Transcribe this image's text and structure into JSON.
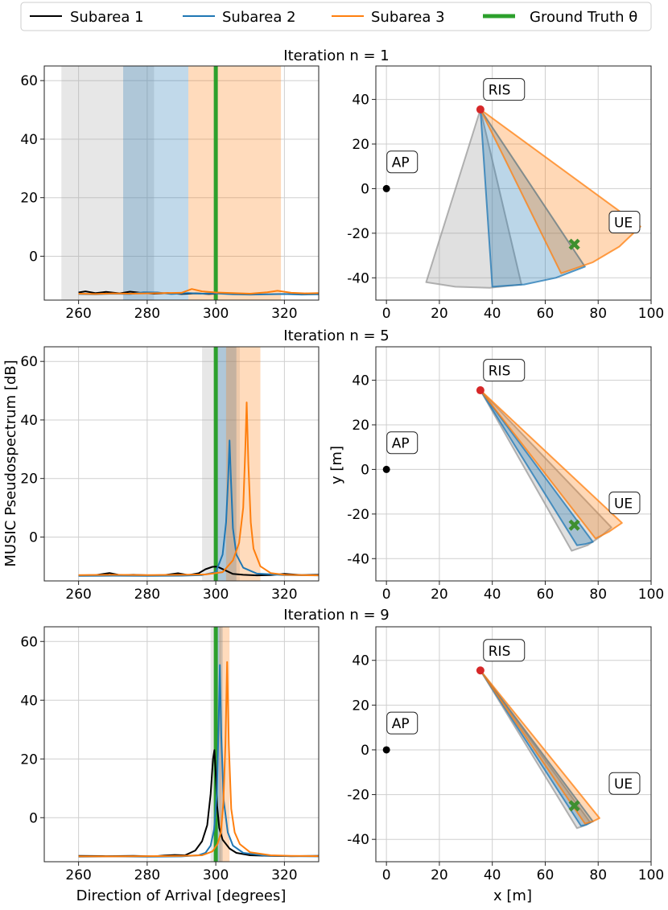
{
  "legend": {
    "entries": [
      {
        "label": "Subarea 1",
        "color": "#000000"
      },
      {
        "label": "Subarea  2",
        "color": "#1f77b4"
      },
      {
        "label": "Subarea  3",
        "color": "#ff7f0e"
      },
      {
        "label": "Ground Truth θ",
        "color": "#2ca02c"
      }
    ]
  },
  "rows": [
    {
      "title": "Iteration n = 1"
    },
    {
      "title": "Iteration n = 5"
    },
    {
      "title": "Iteration n = 9"
    }
  ],
  "labels": {
    "spectrum_ylabel": "MUSIC Pseudospectrum [dB]",
    "spectrum_xlabel": "Direction of Arrival [degrees]",
    "geo_ylabel": "y [m]",
    "geo_xlabel": "x [m]"
  },
  "colors": {
    "subarea1": "#000000",
    "subarea2": "#1f77b4",
    "subarea3": "#ff7f0e",
    "ground_truth": "#2ca02c",
    "ris_marker": "#d62728",
    "ue_marker": "#2ca02c",
    "ap_marker": "#000000"
  },
  "chart_data": [
    {
      "type": "line",
      "title": "Iteration n = 1",
      "xlabel": "",
      "ylabel": "",
      "xlim": [
        250,
        330
      ],
      "ylim": [
        -15,
        65
      ],
      "xticks": [
        260,
        280,
        300,
        320
      ],
      "yticks": [
        0,
        20,
        40,
        60
      ],
      "grid": true,
      "ground_truth": 300,
      "bands": [
        {
          "series": "Subarea 1",
          "range": [
            255,
            282
          ]
        },
        {
          "series": "Subarea 2",
          "range": [
            273,
            292
          ]
        },
        {
          "series": "Subarea 3",
          "range": [
            292,
            319
          ]
        }
      ],
      "series": [
        {
          "name": "Subarea 1",
          "x": [
            260,
            262,
            265,
            268,
            272,
            275,
            278,
            282,
            286,
            290,
            294,
            298,
            300
          ],
          "y": [
            -12.4,
            -12.0,
            -12.6,
            -12.2,
            -12.7,
            -12.1,
            -12.5,
            -12.8,
            -12.6,
            -12.9,
            -12.7,
            -12.9,
            -12.8
          ]
        },
        {
          "name": "Subarea 2",
          "x": [
            260,
            265,
            270,
            275,
            279,
            283,
            287,
            292,
            296,
            300,
            305,
            310,
            315,
            320,
            325,
            330
          ],
          "y": [
            -12.9,
            -13.0,
            -12.8,
            -12.9,
            -12.3,
            -12.4,
            -12.9,
            -12.6,
            -12.8,
            -12.7,
            -13.0,
            -13.1,
            -13.0,
            -12.9,
            -13.1,
            -13.0
          ]
        },
        {
          "name": "Subarea 3",
          "x": [
            260,
            265,
            270,
            275,
            280,
            285,
            290,
            293,
            296,
            300,
            305,
            310,
            315,
            318,
            322,
            326,
            330
          ],
          "y": [
            -12.8,
            -12.9,
            -12.7,
            -12.8,
            -12.7,
            -12.6,
            -12.5,
            -11.2,
            -12.0,
            -12.4,
            -12.6,
            -12.8,
            -12.3,
            -11.8,
            -12.5,
            -12.7,
            -12.6
          ]
        }
      ]
    },
    {
      "type": "scatter",
      "title": "Iteration n = 1",
      "xlim": [
        -4,
        100
      ],
      "ylim": [
        -50,
        55
      ],
      "xticks": [
        0,
        20,
        40,
        60,
        80,
        100
      ],
      "yticks": [
        -40,
        -20,
        0,
        20,
        40
      ],
      "grid": true,
      "points": [
        {
          "label": "AP",
          "x": 0,
          "y": 0
        },
        {
          "label": "RIS",
          "x": 35.5,
          "y": 35.5
        },
        {
          "label": "UE",
          "x": 71,
          "y": -25
        }
      ],
      "label_offsets": {
        "AP": [
          2,
          10
        ],
        "RIS": [
          3,
          7
        ],
        "UE": [
          15,
          8
        ]
      },
      "sectors": [
        {
          "series": "Subarea 1",
          "vertices": [
            [
              35.5,
              35.5
            ],
            [
              15,
              -42
            ],
            [
              26,
              -44
            ],
            [
              39,
              -44.5
            ],
            [
              51,
              -43
            ]
          ]
        },
        {
          "series": "Subarea 2",
          "vertices": [
            [
              35.5,
              35.5
            ],
            [
              40,
              -44
            ],
            [
              52,
              -43
            ],
            [
              64,
              -40
            ],
            [
              75,
              -35
            ]
          ]
        },
        {
          "series": "Subarea 3",
          "vertices": [
            [
              35.5,
              35.5
            ],
            [
              66,
              -38
            ],
            [
              78,
              -33
            ],
            [
              88,
              -26
            ],
            [
              96,
              -17
            ]
          ]
        }
      ]
    },
    {
      "type": "line",
      "title": "Iteration n = 5",
      "xlabel": "",
      "ylabel": "MUSIC Pseudospectrum [dB]",
      "xlim": [
        250,
        330
      ],
      "ylim": [
        -15,
        65
      ],
      "xticks": [
        260,
        280,
        300,
        320
      ],
      "yticks": [
        0,
        20,
        40,
        60
      ],
      "grid": true,
      "ground_truth": 300,
      "bands": [
        {
          "series": "Subarea 1",
          "range": [
            296,
            307
          ]
        },
        {
          "series": "Subarea 2",
          "range": [
            300,
            306
          ]
        },
        {
          "series": "Subarea 3",
          "range": [
            303,
            313
          ]
        }
      ],
      "series": [
        {
          "name": "Subarea 1",
          "x": [
            260,
            265,
            269,
            272,
            276,
            281,
            285,
            289,
            292,
            295,
            297,
            299,
            300,
            301,
            303,
            305,
            308,
            312,
            316,
            320,
            325,
            330
          ],
          "y": [
            -13.1,
            -13.0,
            -12.3,
            -13.0,
            -12.9,
            -13.1,
            -13.0,
            -12.4,
            -13.0,
            -12.4,
            -11.0,
            -10.2,
            -10.1,
            -10.4,
            -11.5,
            -12.6,
            -12.9,
            -13.1,
            -13.0,
            -12.6,
            -13.0,
            -12.9
          ]
        },
        {
          "name": "Subarea 2",
          "x": [
            260,
            270,
            280,
            290,
            296,
            300,
            302,
            303,
            303.6,
            304,
            304.4,
            305,
            306,
            308,
            312,
            320,
            330
          ],
          "y": [
            -13.3,
            -13.2,
            -13.3,
            -13.2,
            -13.0,
            -12.0,
            -6.0,
            5.0,
            20.0,
            33.0,
            20.0,
            3.0,
            -6.0,
            -10.5,
            -12.5,
            -13.0,
            -13.1
          ]
        },
        {
          "name": "Subarea 3",
          "x": [
            260,
            270,
            280,
            290,
            297,
            302,
            305,
            306.8,
            308,
            308.6,
            309,
            309.5,
            310.2,
            311,
            313,
            316,
            320,
            330
          ],
          "y": [
            -13.0,
            -12.9,
            -13.0,
            -12.9,
            -12.8,
            -12.0,
            -8.0,
            -2.0,
            10.0,
            30.0,
            46.0,
            25.0,
            5.0,
            -4.0,
            -10.0,
            -12.3,
            -12.9,
            -13.1
          ]
        }
      ]
    },
    {
      "type": "scatter",
      "title": "Iteration n = 5",
      "xlabel": "",
      "ylabel": "y [m]",
      "xlim": [
        -4,
        100
      ],
      "ylim": [
        -50,
        55
      ],
      "xticks": [
        0,
        20,
        40,
        60,
        80,
        100
      ],
      "yticks": [
        -40,
        -20,
        0,
        20,
        40
      ],
      "grid": true,
      "points": [
        {
          "label": "AP",
          "x": 0,
          "y": 0
        },
        {
          "label": "RIS",
          "x": 35.5,
          "y": 35.5
        },
        {
          "label": "UE",
          "x": 71,
          "y": -25
        }
      ],
      "label_offsets": {
        "AP": [
          2,
          10
        ],
        "RIS": [
          3,
          7
        ],
        "UE": [
          15,
          8
        ]
      },
      "sectors": [
        {
          "series": "Subarea 1",
          "vertices": [
            [
              35.5,
              35.5
            ],
            [
              70,
              -36.5
            ],
            [
              76,
              -34
            ],
            [
              81,
              -30
            ],
            [
              85,
              -26
            ]
          ]
        },
        {
          "series": "Subarea 2",
          "vertices": [
            [
              35.5,
              35.5
            ],
            [
              72,
              -34
            ],
            [
              75,
              -33.5
            ],
            [
              78,
              -32.5
            ]
          ]
        },
        {
          "series": "Subarea 3",
          "vertices": [
            [
              35.5,
              35.5
            ],
            [
              79,
              -31
            ],
            [
              84,
              -28
            ],
            [
              89,
              -24
            ]
          ]
        }
      ]
    },
    {
      "type": "line",
      "title": "Iteration n = 9",
      "xlabel": "Direction of Arrival [degrees]",
      "ylabel": "",
      "xlim": [
        250,
        330
      ],
      "ylim": [
        -15,
        65
      ],
      "xticks": [
        260,
        280,
        300,
        320
      ],
      "yticks": [
        0,
        20,
        40,
        60
      ],
      "grid": true,
      "ground_truth": 300,
      "bands": [
        {
          "series": "Subarea 1",
          "range": [
            298.5,
            301.5
          ]
        },
        {
          "series": "Subarea 2",
          "range": [
            299.5,
            302
          ]
        },
        {
          "series": "Subarea 3",
          "range": [
            301,
            304
          ]
        }
      ],
      "series": [
        {
          "name": "Subarea 1",
          "x": [
            260,
            268,
            276,
            282,
            285,
            288,
            291,
            294,
            296,
            297.5,
            298.5,
            299.2,
            299.6,
            300.0,
            300.4,
            301.0,
            302,
            304,
            306,
            310,
            316,
            322,
            330
          ],
          "y": [
            -13.0,
            -13.1,
            -13.0,
            -13.2,
            -12.9,
            -12.7,
            -12.8,
            -11.2,
            -8.0,
            -2.5,
            8.0,
            20.0,
            23.0,
            15.0,
            4.0,
            -3.5,
            -7.5,
            -10.5,
            -12.0,
            -12.8,
            -13.0,
            -13.1,
            -13.0
          ]
        },
        {
          "name": "Subarea 2",
          "x": [
            260,
            270,
            280,
            290,
            295,
            297,
            298.5,
            299.5,
            300.3,
            300.8,
            301.2,
            301.6,
            302.3,
            303.5,
            305,
            308,
            314,
            322,
            330
          ],
          "y": [
            -13.3,
            -13.2,
            -13.3,
            -13.2,
            -12.8,
            -12.0,
            -9.5,
            -4.0,
            8.0,
            30.0,
            52.0,
            28.0,
            6.0,
            -5.0,
            -9.5,
            -12.0,
            -12.9,
            -13.1,
            -13.2
          ]
        },
        {
          "name": "Subarea 3",
          "x": [
            260,
            270,
            280,
            290,
            296,
            299,
            300.5,
            301.5,
            302.2,
            302.8,
            303.3,
            303.8,
            304.5,
            305.5,
            307,
            310,
            316,
            322,
            330
          ],
          "y": [
            -13.2,
            -13.2,
            -13.1,
            -13.0,
            -12.8,
            -11.5,
            -9.0,
            -5.0,
            5.0,
            25.0,
            53.0,
            25.0,
            3.0,
            -5.0,
            -9.0,
            -11.8,
            -12.8,
            -13.0,
            -13.1
          ]
        }
      ]
    },
    {
      "type": "scatter",
      "title": "Iteration n = 9",
      "xlabel": "x [m]",
      "ylabel": "",
      "xlim": [
        -4,
        100
      ],
      "ylim": [
        -50,
        55
      ],
      "xticks": [
        0,
        20,
        40,
        60,
        80,
        100
      ],
      "yticks": [
        -40,
        -20,
        0,
        20,
        40
      ],
      "grid": true,
      "points": [
        {
          "label": "AP",
          "x": 0,
          "y": 0
        },
        {
          "label": "RIS",
          "x": 35.5,
          "y": 35.5
        },
        {
          "label": "UE",
          "x": 71,
          "y": -25
        }
      ],
      "label_offsets": {
        "AP": [
          2,
          10
        ],
        "RIS": [
          3,
          7
        ],
        "UE": [
          15,
          8
        ]
      },
      "sectors": [
        {
          "series": "Subarea 1",
          "vertices": [
            [
              35.5,
              35.5
            ],
            [
              72,
              -35
            ],
            [
              74.5,
              -34
            ],
            [
              77,
              -32.5
            ]
          ]
        },
        {
          "series": "Subarea 2",
          "vertices": [
            [
              35.5,
              35.5
            ],
            [
              73.5,
              -34
            ],
            [
              75.5,
              -33.5
            ],
            [
              78,
              -32
            ]
          ]
        },
        {
          "series": "Subarea 3",
          "vertices": [
            [
              35.5,
              35.5
            ],
            [
              75,
              -33
            ],
            [
              78,
              -32
            ],
            [
              80.5,
              -30.5
            ]
          ]
        }
      ]
    }
  ]
}
